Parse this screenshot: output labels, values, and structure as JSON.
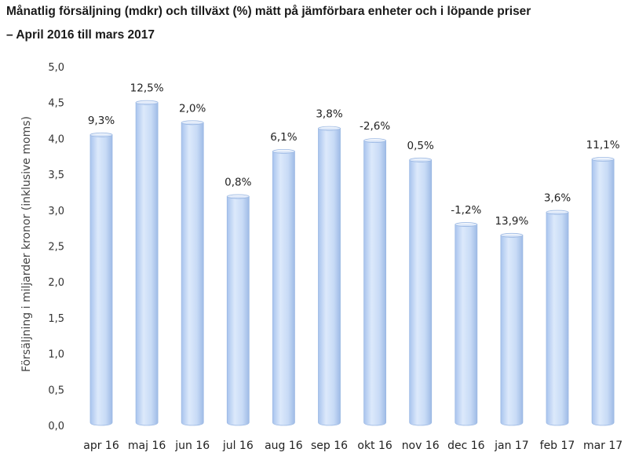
{
  "chart_data": {
    "type": "bar",
    "title": "Månatlig försäljning (mdkr) och tillväxt (%) mätt på jämförbara enheter och i löpande priser",
    "subtitle": "– April 2016 till mars 2017",
    "ylabel": "Försäljning i miljarder kronor (inklusive moms)",
    "xlabel": "",
    "ylim": [
      0,
      5
    ],
    "yticks": [
      "0,0",
      "0,5",
      "1,0",
      "1,5",
      "2,0",
      "2,5",
      "3,0",
      "3,5",
      "4,0",
      "4,5",
      "5,0"
    ],
    "categories": [
      "apr 16",
      "maj 16",
      "jun 16",
      "jul 16",
      "aug 16",
      "sep 16",
      "okt 16",
      "nov 16",
      "dec 16",
      "jan 17",
      "feb 17",
      "mar 17"
    ],
    "values": [
      4.05,
      4.5,
      4.22,
      3.19,
      3.82,
      4.14,
      3.97,
      3.7,
      2.8,
      2.65,
      2.97,
      3.71
    ],
    "data_labels": [
      "9,3%",
      "12,5%",
      "2,0%",
      "0,8%",
      "6,1%",
      "3,8%",
      "-2,6%",
      "0,5%",
      "-1,2%",
      "13,9%",
      "3,6%",
      "11,1%"
    ],
    "grid": false,
    "bar_color": "#c9dcf7",
    "bar_edge_color": "#9bb8e3"
  }
}
